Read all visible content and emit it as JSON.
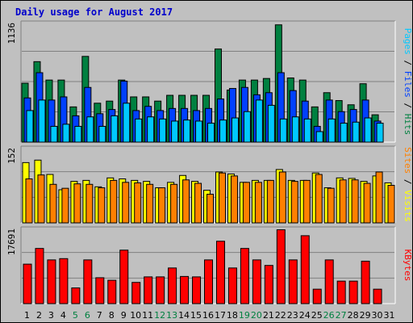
{
  "title": "Daily usage for August 2017",
  "colors": {
    "hits": "#008040",
    "files": "#0040ff",
    "pages": "#00c8ff",
    "visits": "#ffff00",
    "sites": "#ff8000",
    "kbytes": "#ff0000",
    "weekend_label": "#008040",
    "weekday_label": "#000000"
  },
  "legends": {
    "top": [
      {
        "text": "Pages",
        "color": "#00c8ff"
      },
      {
        "text": " / ",
        "color": "#000000"
      },
      {
        "text": "Files",
        "color": "#0040ff"
      },
      {
        "text": " / ",
        "color": "#000000"
      },
      {
        "text": "Hits",
        "color": "#008040"
      }
    ],
    "middle": [
      {
        "text": "Sites",
        "color": "#ff8000"
      },
      {
        "text": " / ",
        "color": "#000000"
      },
      {
        "text": "Visits",
        "color": "#ffff00"
      }
    ],
    "bottom": [
      {
        "text": "KBytes",
        "color": "#ff0000"
      }
    ]
  },
  "chart_data": [
    {
      "type": "bar",
      "panel": "hits-files-pages",
      "ymax_label": "1136",
      "ylim": [
        0,
        1136
      ],
      "categories": [
        "1",
        "2",
        "3",
        "4",
        "5",
        "6",
        "7",
        "8",
        "9",
        "10",
        "11",
        "12",
        "13",
        "14",
        "15",
        "16",
        "17",
        "18",
        "19",
        "20",
        "21",
        "22",
        "23",
        "24",
        "25",
        "26",
        "27",
        "28",
        "29",
        "30",
        "31"
      ],
      "series": [
        {
          "name": "Hits",
          "values": [
            560,
            765,
            590,
            590,
            335,
            815,
            370,
            390,
            590,
            430,
            430,
            390,
            445,
            445,
            445,
            445,
            885,
            495,
            590,
            590,
            605,
            1115,
            610,
            590,
            335,
            470,
            395,
            355,
            555,
            260,
            0
          ]
        },
        {
          "name": "Files",
          "values": [
            420,
            660,
            400,
            430,
            250,
            520,
            270,
            310,
            580,
            300,
            340,
            300,
            320,
            320,
            300,
            320,
            410,
            510,
            520,
            450,
            470,
            660,
            490,
            390,
            150,
            400,
            290,
            310,
            400,
            200,
            0
          ]
        },
        {
          "name": "Pages",
          "values": [
            300,
            400,
            150,
            170,
            150,
            240,
            150,
            250,
            370,
            220,
            240,
            220,
            200,
            210,
            200,
            180,
            210,
            230,
            290,
            400,
            350,
            220,
            240,
            220,
            100,
            220,
            180,
            190,
            230,
            180,
            0
          ]
        }
      ],
      "weekend_days": [
        "5",
        "6",
        "12",
        "13",
        "19",
        "20",
        "26",
        "27"
      ]
    },
    {
      "type": "bar",
      "panel": "visits-sites",
      "ymax_label": "152",
      "ylim": [
        0,
        152
      ],
      "categories": [
        "1",
        "2",
        "3",
        "4",
        "5",
        "6",
        "7",
        "8",
        "9",
        "10",
        "11",
        "12",
        "13",
        "14",
        "15",
        "16",
        "17",
        "18",
        "19",
        "20",
        "21",
        "22",
        "23",
        "24",
        "25",
        "26",
        "27",
        "28",
        "29",
        "30",
        "31"
      ],
      "series": [
        {
          "name": "Visits",
          "values": [
            122,
            127,
            98,
            67,
            84,
            86,
            73,
            91,
            89,
            86,
            84,
            71,
            82,
            96,
            84,
            66,
            103,
            99,
            82,
            86,
            86,
            108,
            86,
            86,
            101,
            71,
            91,
            90,
            84,
            95,
            81
          ]
        },
        {
          "name": "Sites",
          "values": [
            89,
            97,
            78,
            70,
            79,
            78,
            71,
            86,
            82,
            81,
            78,
            71,
            78,
            87,
            80,
            58,
            101,
            95,
            82,
            82,
            86,
            103,
            84,
            86,
            98,
            70,
            87,
            87,
            80,
            103,
            76
          ]
        }
      ]
    },
    {
      "type": "bar",
      "panel": "kbytes",
      "ymax_label": "17691",
      "ylim": [
        0,
        17691
      ],
      "categories": [
        "1",
        "2",
        "3",
        "4",
        "5",
        "6",
        "7",
        "8",
        "9",
        "10",
        "11",
        "12",
        "13",
        "14",
        "15",
        "16",
        "17",
        "18",
        "19",
        "20",
        "21",
        "22",
        "23",
        "24",
        "25",
        "26",
        "27",
        "28",
        "29",
        "30",
        "31"
      ],
      "series": [
        {
          "name": "KBytes",
          "values": [
            9300,
            13000,
            10300,
            10600,
            3700,
            10300,
            6100,
            5500,
            12600,
            5000,
            6300,
            6300,
            8400,
            6400,
            6300,
            10300,
            14700,
            8400,
            13000,
            10300,
            9000,
            17400,
            10300,
            16000,
            3400,
            10300,
            5300,
            5300,
            10000,
            3400,
            0
          ]
        }
      ]
    }
  ]
}
